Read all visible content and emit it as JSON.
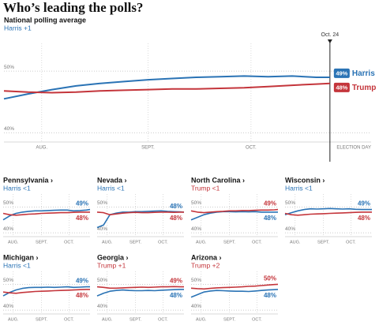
{
  "header": {
    "title": "Who’s leading the polls?"
  },
  "chart_data": [
    {
      "type": "line",
      "title": "National polling average",
      "subtitle": "Harris +1",
      "subtitle_color": "#2a73b5",
      "x": [
        0,
        7,
        14,
        21,
        28,
        35,
        42,
        49,
        56,
        63,
        70,
        77,
        84,
        91,
        95
      ],
      "xlim": [
        0,
        107
      ],
      "xticks": [
        {
          "value": 11,
          "label": "AUG."
        },
        {
          "value": 42,
          "label": "SEPT."
        },
        {
          "value": 72,
          "label": "OCT."
        },
        {
          "value": 107,
          "label": "ELECTION DAY"
        }
      ],
      "ylim": [
        38.5,
        54.5
      ],
      "yticks": [
        {
          "value": 50,
          "label": "50%"
        },
        {
          "value": 40,
          "label": "40%"
        }
      ],
      "grid": true,
      "annotation": {
        "label": "Oct. 24",
        "x": 95
      },
      "series": [
        {
          "name": "Harris",
          "color": "#2a73b5",
          "values": [
            45.5,
            46.3,
            47,
            47.6,
            48,
            48.3,
            48.6,
            48.8,
            49,
            49.1,
            49.2,
            49.1,
            49.2,
            49,
            49
          ],
          "value_labels": [
            null,
            null,
            null,
            null,
            null,
            null,
            null,
            null,
            null,
            null,
            null,
            null,
            null,
            null,
            "49%"
          ]
        },
        {
          "name": "Trump",
          "color": "#c4353b",
          "values": [
            46.8,
            46.6,
            46.5,
            46.6,
            46.8,
            46.9,
            47,
            47.1,
            47.1,
            47.2,
            47.3,
            47.5,
            47.7,
            47.9,
            48
          ],
          "value_labels": [
            null,
            null,
            null,
            null,
            null,
            null,
            null,
            null,
            null,
            null,
            null,
            null,
            null,
            null,
            "48%"
          ]
        }
      ]
    },
    {
      "type": "line",
      "title": "Pennsylvania ›",
      "subtitle": "Harris <1",
      "subtitle_color": "#2a73b5",
      "x": [
        0,
        7,
        14,
        21,
        28,
        35,
        42,
        49,
        56,
        63,
        70,
        77,
        84,
        91,
        95
      ],
      "xlim": [
        0,
        95
      ],
      "xticks": [
        {
          "value": 11,
          "label": "AUG."
        },
        {
          "value": 42,
          "label": "SEPT."
        },
        {
          "value": 72,
          "label": "OCT."
        }
      ],
      "ylim": [
        38.5,
        55
      ],
      "yticks": [
        {
          "value": 50,
          "label": "50%"
        },
        {
          "value": 40,
          "label": "40%"
        }
      ],
      "grid": true,
      "series": [
        {
          "name": "Harris",
          "color": "#2a73b5",
          "values": [
            45,
            46.5,
            47.5,
            48,
            48.3,
            48.5,
            48.5,
            48.6,
            48.7,
            48.8,
            48.8,
            48.5,
            48.6,
            48.8,
            49
          ],
          "value_labels": [
            null,
            null,
            null,
            null,
            null,
            null,
            null,
            null,
            null,
            null,
            null,
            null,
            null,
            null,
            "49%"
          ]
        },
        {
          "name": "Trump",
          "color": "#c4353b",
          "values": [
            47.5,
            47,
            46.8,
            47,
            47.2,
            47.3,
            47.5,
            47.6,
            47.7,
            47.8,
            47.8,
            47.9,
            48,
            48,
            48
          ],
          "value_labels": [
            null,
            null,
            null,
            null,
            null,
            null,
            null,
            null,
            null,
            null,
            null,
            null,
            null,
            null,
            "48%"
          ]
        }
      ]
    },
    {
      "type": "line",
      "title": "Nevada ›",
      "subtitle": "Harris <1",
      "subtitle_color": "#2a73b5",
      "x": [
        0,
        7,
        14,
        21,
        28,
        35,
        42,
        49,
        56,
        63,
        70,
        77,
        84,
        91,
        95
      ],
      "xlim": [
        0,
        95
      ],
      "xticks": [
        {
          "value": 11,
          "label": "AUG."
        },
        {
          "value": 42,
          "label": "SEPT."
        },
        {
          "value": 72,
          "label": "OCT."
        }
      ],
      "ylim": [
        38.5,
        55
      ],
      "yticks": [
        {
          "value": 50,
          "label": "50%"
        },
        {
          "value": 40,
          "label": "40%"
        }
      ],
      "grid": true,
      "series": [
        {
          "name": "Harris",
          "color": "#2a73b5",
          "values": [
            42,
            43,
            47,
            47.6,
            48,
            48,
            48.2,
            48.2,
            48.3,
            48.4,
            48.5,
            48.3,
            48.2,
            48.1,
            48
          ],
          "value_labels": [
            null,
            null,
            null,
            null,
            null,
            null,
            null,
            null,
            null,
            null,
            null,
            null,
            null,
            null,
            "48%"
          ]
        },
        {
          "name": "Trump",
          "color": "#c4353b",
          "values": [
            48,
            47.8,
            47,
            47.3,
            47.6,
            47.8,
            47.9,
            47.8,
            47.8,
            47.9,
            48,
            48,
            47.9,
            48,
            48
          ],
          "value_labels": [
            null,
            null,
            null,
            null,
            null,
            null,
            null,
            null,
            null,
            null,
            null,
            null,
            null,
            null,
            "48%"
          ]
        }
      ]
    },
    {
      "type": "line",
      "title": "North Carolina ›",
      "subtitle": "Trump <1",
      "subtitle_color": "#c4353b",
      "x": [
        0,
        7,
        14,
        21,
        28,
        35,
        42,
        49,
        56,
        63,
        70,
        77,
        84,
        91,
        95
      ],
      "xlim": [
        0,
        95
      ],
      "xticks": [
        {
          "value": 11,
          "label": "AUG."
        },
        {
          "value": 42,
          "label": "SEPT."
        },
        {
          "value": 72,
          "label": "OCT."
        }
      ],
      "ylim": [
        38.5,
        55
      ],
      "yticks": [
        {
          "value": 50,
          "label": "50%"
        },
        {
          "value": 40,
          "label": "40%"
        }
      ],
      "grid": true,
      "series": [
        {
          "name": "Harris",
          "color": "#2a73b5",
          "values": [
            45,
            46,
            47,
            47.6,
            48,
            48.2,
            48.2,
            48.1,
            48.2,
            48.1,
            48.2,
            48,
            48,
            48,
            48
          ],
          "value_labels": [
            null,
            null,
            null,
            null,
            null,
            null,
            null,
            null,
            null,
            null,
            null,
            null,
            null,
            null,
            "48%"
          ]
        },
        {
          "name": "Trump",
          "color": "#c4353b",
          "values": [
            48.5,
            48,
            47.8,
            48,
            48.2,
            48.3,
            48.5,
            48.5,
            48.6,
            48.6,
            48.7,
            48.8,
            48.8,
            48.9,
            49
          ],
          "value_labels": [
            null,
            null,
            null,
            null,
            null,
            null,
            null,
            null,
            null,
            null,
            null,
            null,
            null,
            null,
            "49%"
          ]
        }
      ]
    },
    {
      "type": "line",
      "title": "Wisconsin ›",
      "subtitle": "Harris <1",
      "subtitle_color": "#2a73b5",
      "x": [
        0,
        7,
        14,
        21,
        28,
        35,
        42,
        49,
        56,
        63,
        70,
        77,
        84,
        91,
        95
      ],
      "xlim": [
        0,
        95
      ],
      "xticks": [
        {
          "value": 11,
          "label": "AUG."
        },
        {
          "value": 42,
          "label": "SEPT."
        },
        {
          "value": 72,
          "label": "OCT."
        }
      ],
      "ylim": [
        38.5,
        55
      ],
      "yticks": [
        {
          "value": 50,
          "label": "50%"
        },
        {
          "value": 40,
          "label": "40%"
        }
      ],
      "grid": true,
      "series": [
        {
          "name": "Harris",
          "color": "#2a73b5",
          "values": [
            47,
            47.8,
            48.5,
            49,
            49.3,
            49.2,
            49.3,
            49.4,
            49.3,
            49.2,
            49.3,
            49.1,
            49,
            49,
            49
          ],
          "value_labels": [
            null,
            null,
            null,
            null,
            null,
            null,
            null,
            null,
            null,
            null,
            null,
            null,
            null,
            null,
            "49%"
          ]
        },
        {
          "name": "Trump",
          "color": "#c4353b",
          "values": [
            47.5,
            47,
            46.8,
            47,
            47.2,
            47.3,
            47.4,
            47.5,
            47.6,
            47.7,
            47.8,
            47.9,
            48,
            48,
            48
          ],
          "value_labels": [
            null,
            null,
            null,
            null,
            null,
            null,
            null,
            null,
            null,
            null,
            null,
            null,
            null,
            null,
            "48%"
          ]
        }
      ]
    },
    {
      "type": "line",
      "title": "Michigan ›",
      "subtitle": "Harris <1",
      "subtitle_color": "#2a73b5",
      "x": [
        0,
        7,
        14,
        21,
        28,
        35,
        42,
        49,
        56,
        63,
        70,
        77,
        84,
        91,
        95
      ],
      "xlim": [
        0,
        95
      ],
      "xticks": [
        {
          "value": 11,
          "label": "AUG."
        },
        {
          "value": 42,
          "label": "SEPT."
        },
        {
          "value": 72,
          "label": "OCT."
        }
      ],
      "ylim": [
        38.5,
        55
      ],
      "yticks": [
        {
          "value": 50,
          "label": "50%"
        },
        {
          "value": 40,
          "label": "40%"
        }
      ],
      "grid": true,
      "series": [
        {
          "name": "Harris",
          "color": "#2a73b5",
          "values": [
            45.5,
            46.8,
            47.8,
            48.4,
            48.7,
            48.8,
            48.8,
            48.9,
            48.8,
            48.9,
            49,
            48.8,
            48.9,
            49,
            49
          ],
          "value_labels": [
            null,
            null,
            null,
            null,
            null,
            null,
            null,
            null,
            null,
            null,
            null,
            null,
            null,
            null,
            "49%"
          ]
        },
        {
          "name": "Trump",
          "color": "#c4353b",
          "values": [
            47,
            46.7,
            46.5,
            46.8,
            47,
            47.2,
            47.3,
            47.4,
            47.5,
            47.6,
            47.7,
            47.8,
            47.9,
            48,
            48
          ],
          "value_labels": [
            null,
            null,
            null,
            null,
            null,
            null,
            null,
            null,
            null,
            null,
            null,
            null,
            null,
            null,
            "48%"
          ]
        }
      ]
    },
    {
      "type": "line",
      "title": "Georgia ›",
      "subtitle": "Trump +1",
      "subtitle_color": "#c4353b",
      "x": [
        0,
        7,
        14,
        21,
        28,
        35,
        42,
        49,
        56,
        63,
        70,
        77,
        84,
        91,
        95
      ],
      "xlim": [
        0,
        95
      ],
      "xticks": [
        {
          "value": 11,
          "label": "AUG."
        },
        {
          "value": 42,
          "label": "SEPT."
        },
        {
          "value": 72,
          "label": "OCT."
        }
      ],
      "ylim": [
        38.5,
        55
      ],
      "yticks": [
        {
          "value": 50,
          "label": "50%"
        },
        {
          "value": 40,
          "label": "40%"
        }
      ],
      "grid": true,
      "series": [
        {
          "name": "Harris",
          "color": "#2a73b5",
          "values": [
            45.5,
            46.5,
            47.3,
            47.6,
            47.8,
            47.6,
            47.5,
            47.5,
            47.6,
            47.5,
            47.7,
            47.8,
            47.9,
            48,
            48
          ],
          "value_labels": [
            null,
            null,
            null,
            null,
            null,
            null,
            null,
            null,
            null,
            null,
            null,
            null,
            null,
            null,
            "48%"
          ]
        },
        {
          "name": "Trump",
          "color": "#c4353b",
          "values": [
            49,
            48.8,
            48.5,
            48.5,
            48.6,
            48.7,
            48.8,
            48.9,
            48.8,
            48.9,
            49,
            49,
            49.1,
            49,
            49
          ],
          "value_labels": [
            null,
            null,
            null,
            null,
            null,
            null,
            null,
            null,
            null,
            null,
            null,
            null,
            null,
            null,
            "49%"
          ]
        }
      ]
    },
    {
      "type": "line",
      "title": "Arizona ›",
      "subtitle": "Trump +2",
      "subtitle_color": "#c4353b",
      "x": [
        0,
        7,
        14,
        21,
        28,
        35,
        42,
        49,
        56,
        63,
        70,
        77,
        84,
        91,
        95
      ],
      "xlim": [
        0,
        95
      ],
      "xticks": [
        {
          "value": 11,
          "label": "AUG."
        },
        {
          "value": 42,
          "label": "SEPT."
        },
        {
          "value": 72,
          "label": "OCT."
        }
      ],
      "ylim": [
        38.5,
        55
      ],
      "yticks": [
        {
          "value": 50,
          "label": "50%"
        },
        {
          "value": 40,
          "label": "40%"
        }
      ],
      "grid": true,
      "series": [
        {
          "name": "Harris",
          "color": "#2a73b5",
          "values": [
            45,
            46,
            47,
            47.4,
            47.6,
            47.5,
            47.4,
            47.3,
            47.3,
            47.2,
            47.4,
            47.6,
            47.8,
            47.9,
            48
          ],
          "value_labels": [
            null,
            null,
            null,
            null,
            null,
            null,
            null,
            null,
            null,
            null,
            null,
            null,
            null,
            null,
            "48%"
          ]
        },
        {
          "name": "Trump",
          "color": "#c4353b",
          "values": [
            48.5,
            48.3,
            48.2,
            48.4,
            48.6,
            48.7,
            48.8,
            48.9,
            49,
            49.2,
            49.3,
            49.5,
            49.7,
            49.9,
            50
          ],
          "value_labels": [
            null,
            null,
            null,
            null,
            null,
            null,
            null,
            null,
            null,
            null,
            null,
            null,
            null,
            null,
            "50%"
          ]
        }
      ]
    }
  ]
}
